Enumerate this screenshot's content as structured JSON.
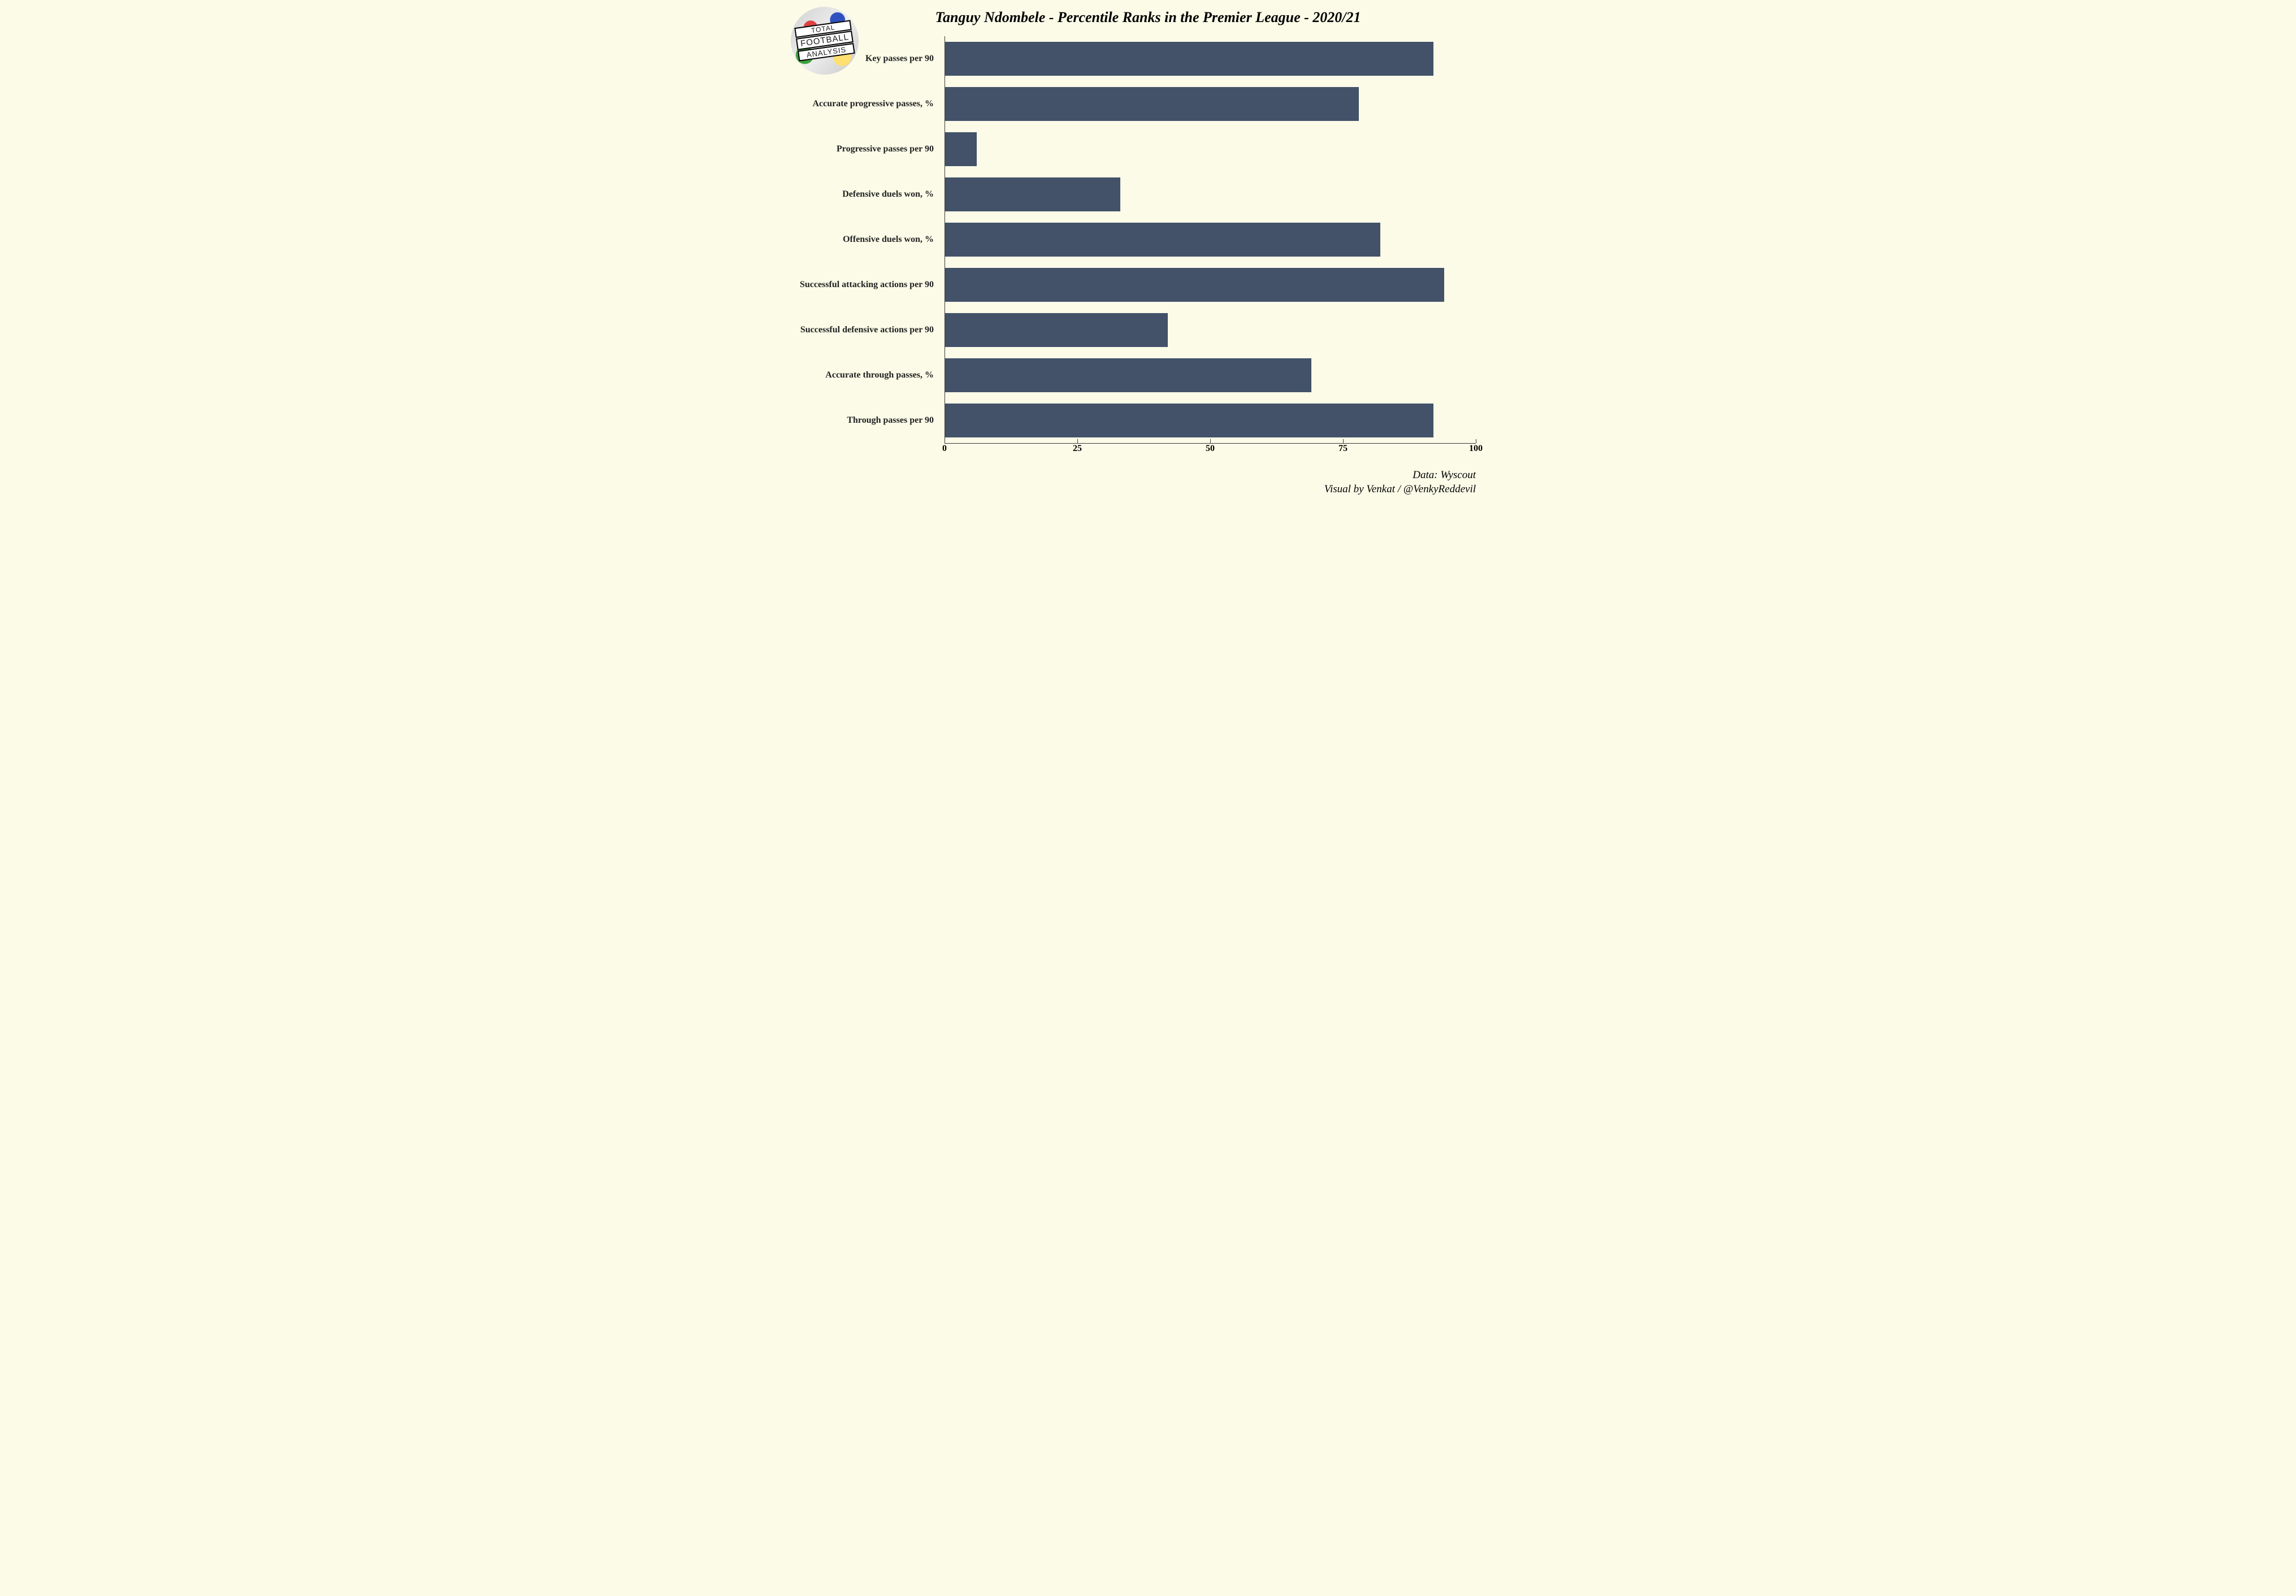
{
  "chart": {
    "type": "bar-horizontal",
    "title": "Tanguy Ndombele - Percentile Ranks in the Premier League - 2020/21",
    "title_fontsize": 26,
    "title_font": "cursive-italic",
    "background_color": "#fbfbe8",
    "bar_color": "#435269",
    "axis_color": "#3a3a3a",
    "label_color": "#222222",
    "label_fontsize": 16,
    "label_fontweight": "bold",
    "xlim": [
      0,
      100
    ],
    "xticks": [
      0,
      25,
      50,
      75,
      100
    ],
    "xtick_fontsize": 16,
    "bar_height_ratio": 0.75,
    "categories": [
      "Key passes per 90",
      "Accurate progressive passes, %",
      "Progressive passes per 90",
      "Defensive duels won, %",
      "Offensive duels won, %",
      "Successful attacking actions per 90",
      "Successful defensive actions per 90",
      "Accurate through passes, %",
      "Through passes per 90"
    ],
    "values": [
      92,
      78,
      6,
      33,
      82,
      94,
      42,
      69,
      92
    ]
  },
  "logo": {
    "top_word": "TOTAL",
    "mid_word": "FOOTBALL",
    "bottom_word": "ANALYSIS"
  },
  "credits": {
    "line1": "Data: Wyscout",
    "line2": "Visual by Venkat / @VenkyReddevil"
  }
}
